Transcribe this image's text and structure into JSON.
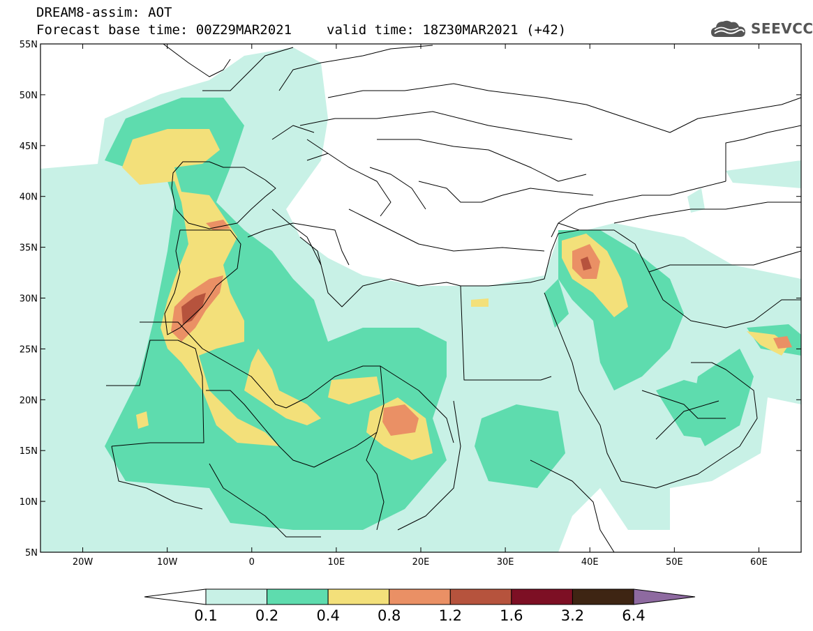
{
  "header": {
    "line1": "DREAM8-assim: AOT",
    "base_time": "Forecast base time: 00Z29MAR2021",
    "valid_time": "valid time: 18Z30MAR2021 (+42)"
  },
  "logo": {
    "text": "SEEVCCC",
    "icon": "cloud-logo-icon"
  },
  "map": {
    "lon_range": [
      -25,
      65
    ],
    "lat_range": [
      5,
      55
    ],
    "lon_ticks": [
      {
        "v": -20,
        "label": "20W"
      },
      {
        "v": -10,
        "label": "10W"
      },
      {
        "v": 0,
        "label": "0"
      },
      {
        "v": 10,
        "label": "10E"
      },
      {
        "v": 20,
        "label": "20E"
      },
      {
        "v": 30,
        "label": "30E"
      },
      {
        "v": 40,
        "label": "40E"
      },
      {
        "v": 50,
        "label": "50E"
      },
      {
        "v": 60,
        "label": "60E"
      }
    ],
    "lat_ticks": [
      {
        "v": 55,
        "label": "55N"
      },
      {
        "v": 50,
        "label": "50N"
      },
      {
        "v": 45,
        "label": "45N"
      },
      {
        "v": 40,
        "label": "40N"
      },
      {
        "v": 35,
        "label": "35N"
      },
      {
        "v": 30,
        "label": "30N"
      },
      {
        "v": 25,
        "label": "25N"
      },
      {
        "v": 20,
        "label": "20N"
      },
      {
        "v": 15,
        "label": "15N"
      },
      {
        "v": 10,
        "label": "10N"
      },
      {
        "v": 5,
        "label": "5N"
      }
    ]
  },
  "colorbar": {
    "bins": [
      "#c8f1e6",
      "#5edcae",
      "#f3e07a",
      "#ea9065",
      "#b6533d",
      "#7d0f24",
      "#3e2513"
    ],
    "under_color": "#ffffff",
    "over_color": "#8e6aa0",
    "labels": [
      "0.1",
      "0.2",
      "0.4",
      "0.8",
      "1.2",
      "1.6",
      "3.2",
      "6.4"
    ]
  }
}
